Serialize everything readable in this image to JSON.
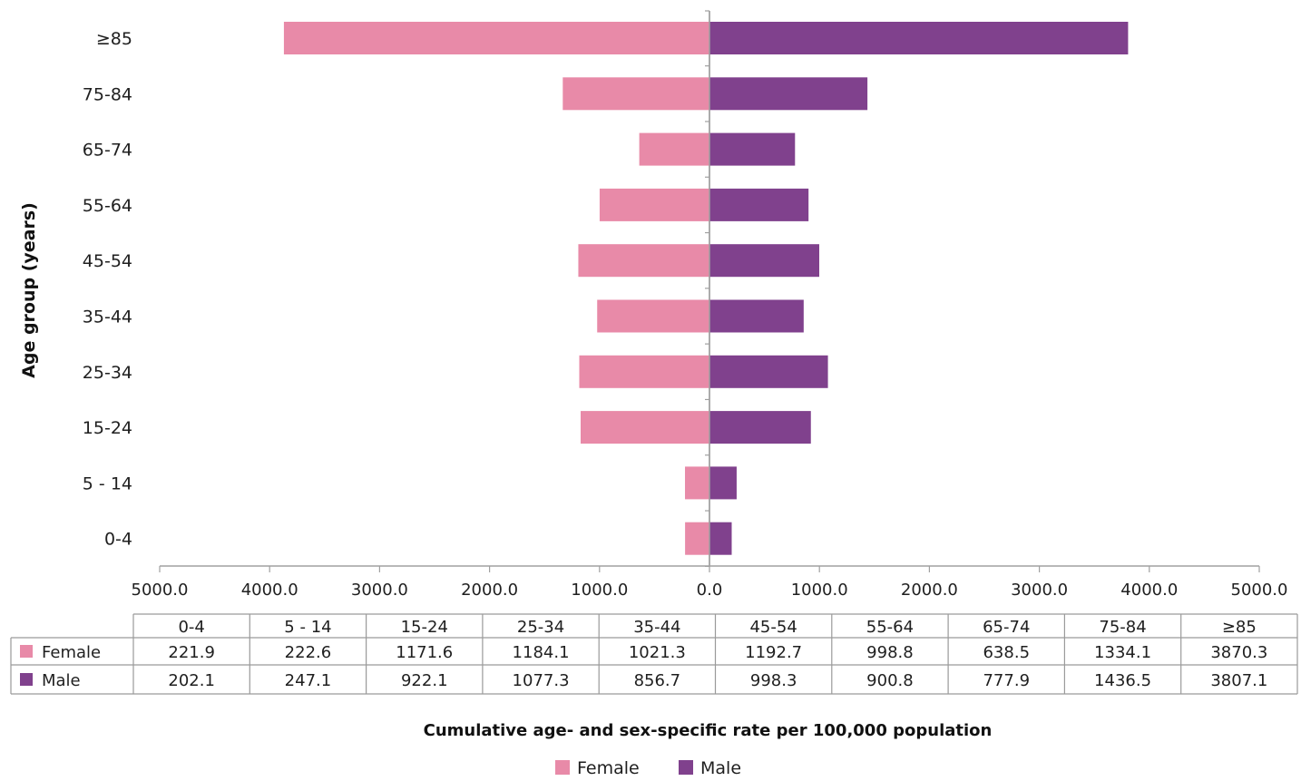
{
  "chart_data": {
    "type": "bar",
    "orientation": "horizontal-diverging",
    "categories": [
      "0-4",
      "5 - 14",
      "15-24",
      "25-34",
      "35-44",
      "45-54",
      "55-64",
      "65-74",
      "75-84",
      "≥85"
    ],
    "series": [
      {
        "name": "Female",
        "color": "#e88aa8",
        "direction": "left",
        "values": [
          221.9,
          222.6,
          1171.6,
          1184.1,
          1021.3,
          1192.7,
          998.8,
          638.5,
          1334.1,
          3870.3
        ],
        "display_values": [
          "221.9",
          "222.6",
          "1171.6",
          "1184.1",
          "1021.3",
          "1192.7",
          "998.8",
          "638.5",
          "1334.1",
          "3870.3"
        ]
      },
      {
        "name": "Male",
        "color": "#80418d",
        "direction": "right",
        "values": [
          202.1,
          247.1,
          922.1,
          1077.3,
          856.7,
          998.3,
          900.8,
          777.9,
          1436.5,
          3807.1
        ],
        "display_values": [
          "202.1",
          "247.1",
          "922.1",
          "1077.3",
          "856.7",
          "998.3",
          "900.8",
          "777.9",
          "1436.5",
          "3807.1"
        ]
      }
    ],
    "title": "",
    "xlabel": "Cumulative age- and sex-specific rate per 100,000 population",
    "ylabel": "Age group (years)",
    "xlim": [
      -5000,
      5000
    ],
    "x_ticks": [
      -5000,
      -4000,
      -3000,
      -2000,
      -1000,
      0,
      1000,
      2000,
      3000,
      4000,
      5000
    ],
    "x_tick_labels": [
      "5000.0",
      "4000.0",
      "3000.0",
      "2000.0",
      "1000.0",
      "0.0",
      "1000.0",
      "2000.0",
      "3000.0",
      "4000.0",
      "5000.0"
    ],
    "grid": false,
    "data_table": true,
    "legend": {
      "placement": "bottom-center",
      "entries": [
        "Female",
        "Male"
      ]
    }
  }
}
